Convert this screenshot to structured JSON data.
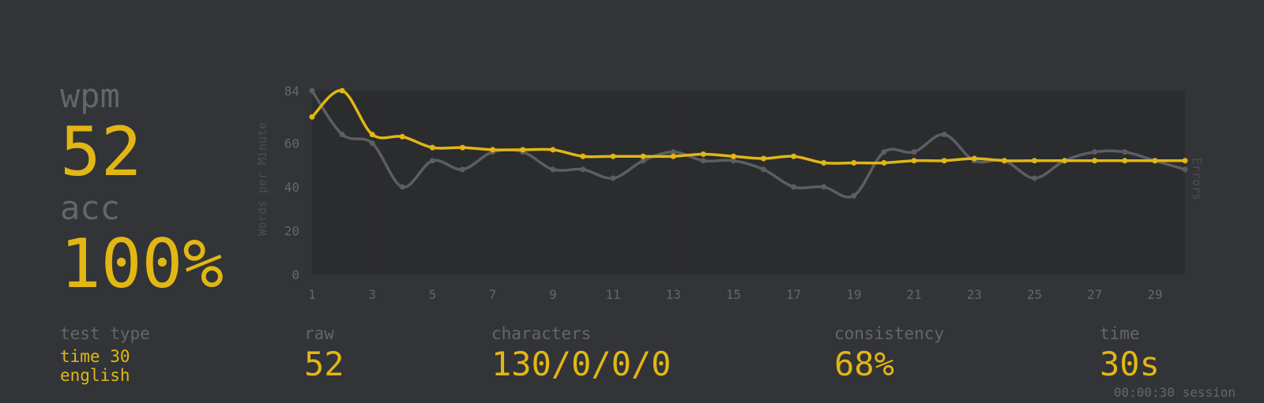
{
  "stats": {
    "wpm_label": "wpm",
    "wpm_value": "52",
    "acc_label": "acc",
    "acc_value": "100%"
  },
  "bottom": {
    "test_type_label": "test type",
    "test_type_mode": "time 30",
    "test_type_language": "english",
    "raw_label": "raw",
    "raw_value": "52",
    "characters_label": "characters",
    "characters_value": "130/0/0/0",
    "consistency_label": "consistency",
    "consistency_value": "68%",
    "time_label": "time",
    "time_value": "30s",
    "session_text": "00:00:30 session"
  },
  "colors": {
    "background": "#323437",
    "accent": "#e2b714",
    "sub": "#646669",
    "raw_line": "#5c5e61",
    "plot_bg": "#2b2c2e"
  },
  "chart_data": {
    "type": "line",
    "x": [
      1,
      2,
      3,
      4,
      5,
      6,
      7,
      8,
      9,
      10,
      11,
      12,
      13,
      14,
      15,
      16,
      17,
      18,
      19,
      20,
      21,
      22,
      23,
      24,
      25,
      26,
      27,
      28,
      29,
      30
    ],
    "xticks": [
      "1",
      "3",
      "5",
      "7",
      "9",
      "11",
      "13",
      "15",
      "17",
      "19",
      "21",
      "23",
      "25",
      "27",
      "29"
    ],
    "yticks": [
      "0",
      "20",
      "40",
      "60",
      "84"
    ],
    "ylim": [
      0,
      84
    ],
    "xlim": [
      1,
      30
    ],
    "ylabel": "Words per Minute",
    "y2label": "Errors",
    "grid": true,
    "series": [
      {
        "id": "raw",
        "color": "#5c5e61",
        "values": [
          84,
          64,
          60,
          40,
          52,
          48,
          56,
          56,
          48,
          48,
          44,
          52,
          56,
          52,
          52,
          48,
          40,
          40,
          36,
          56,
          56,
          64,
          52,
          52,
          44,
          52,
          56,
          56,
          52,
          48
        ]
      },
      {
        "id": "wpm",
        "color": "#e2b714",
        "values": [
          72,
          84,
          64,
          63,
          58,
          58,
          57,
          57,
          57,
          54,
          54,
          54,
          54,
          55,
          54,
          53,
          54,
          51,
          51,
          51,
          52,
          52,
          53,
          52,
          52,
          52,
          52,
          52,
          52,
          52
        ]
      }
    ]
  }
}
